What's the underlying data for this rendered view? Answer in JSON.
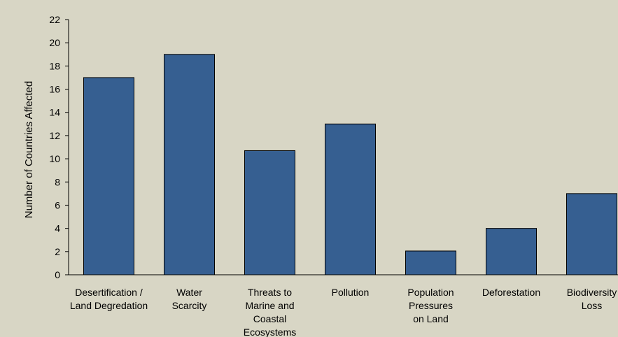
{
  "chart_data": {
    "type": "bar",
    "ylabel": "Number of Countries Affected",
    "ylim": [
      0,
      22
    ],
    "yticks": [
      0,
      2,
      4,
      6,
      8,
      10,
      12,
      14,
      16,
      18,
      20,
      22
    ],
    "categories": [
      [
        "Desertification /",
        "Land Degredation"
      ],
      [
        "Water",
        "Scarcity"
      ],
      [
        "Threats to",
        "Marine and",
        "Coastal",
        "Ecosystems"
      ],
      [
        "Pollution"
      ],
      [
        "Population",
        "Pressures",
        "on Land"
      ],
      [
        "Deforestation"
      ],
      [
        "Biodiversity",
        "Loss"
      ]
    ],
    "values": [
      17,
      19,
      10.7,
      13,
      2.05,
      4,
      7
    ],
    "bar_color": "#365f91",
    "grid": false,
    "legend": "none"
  }
}
